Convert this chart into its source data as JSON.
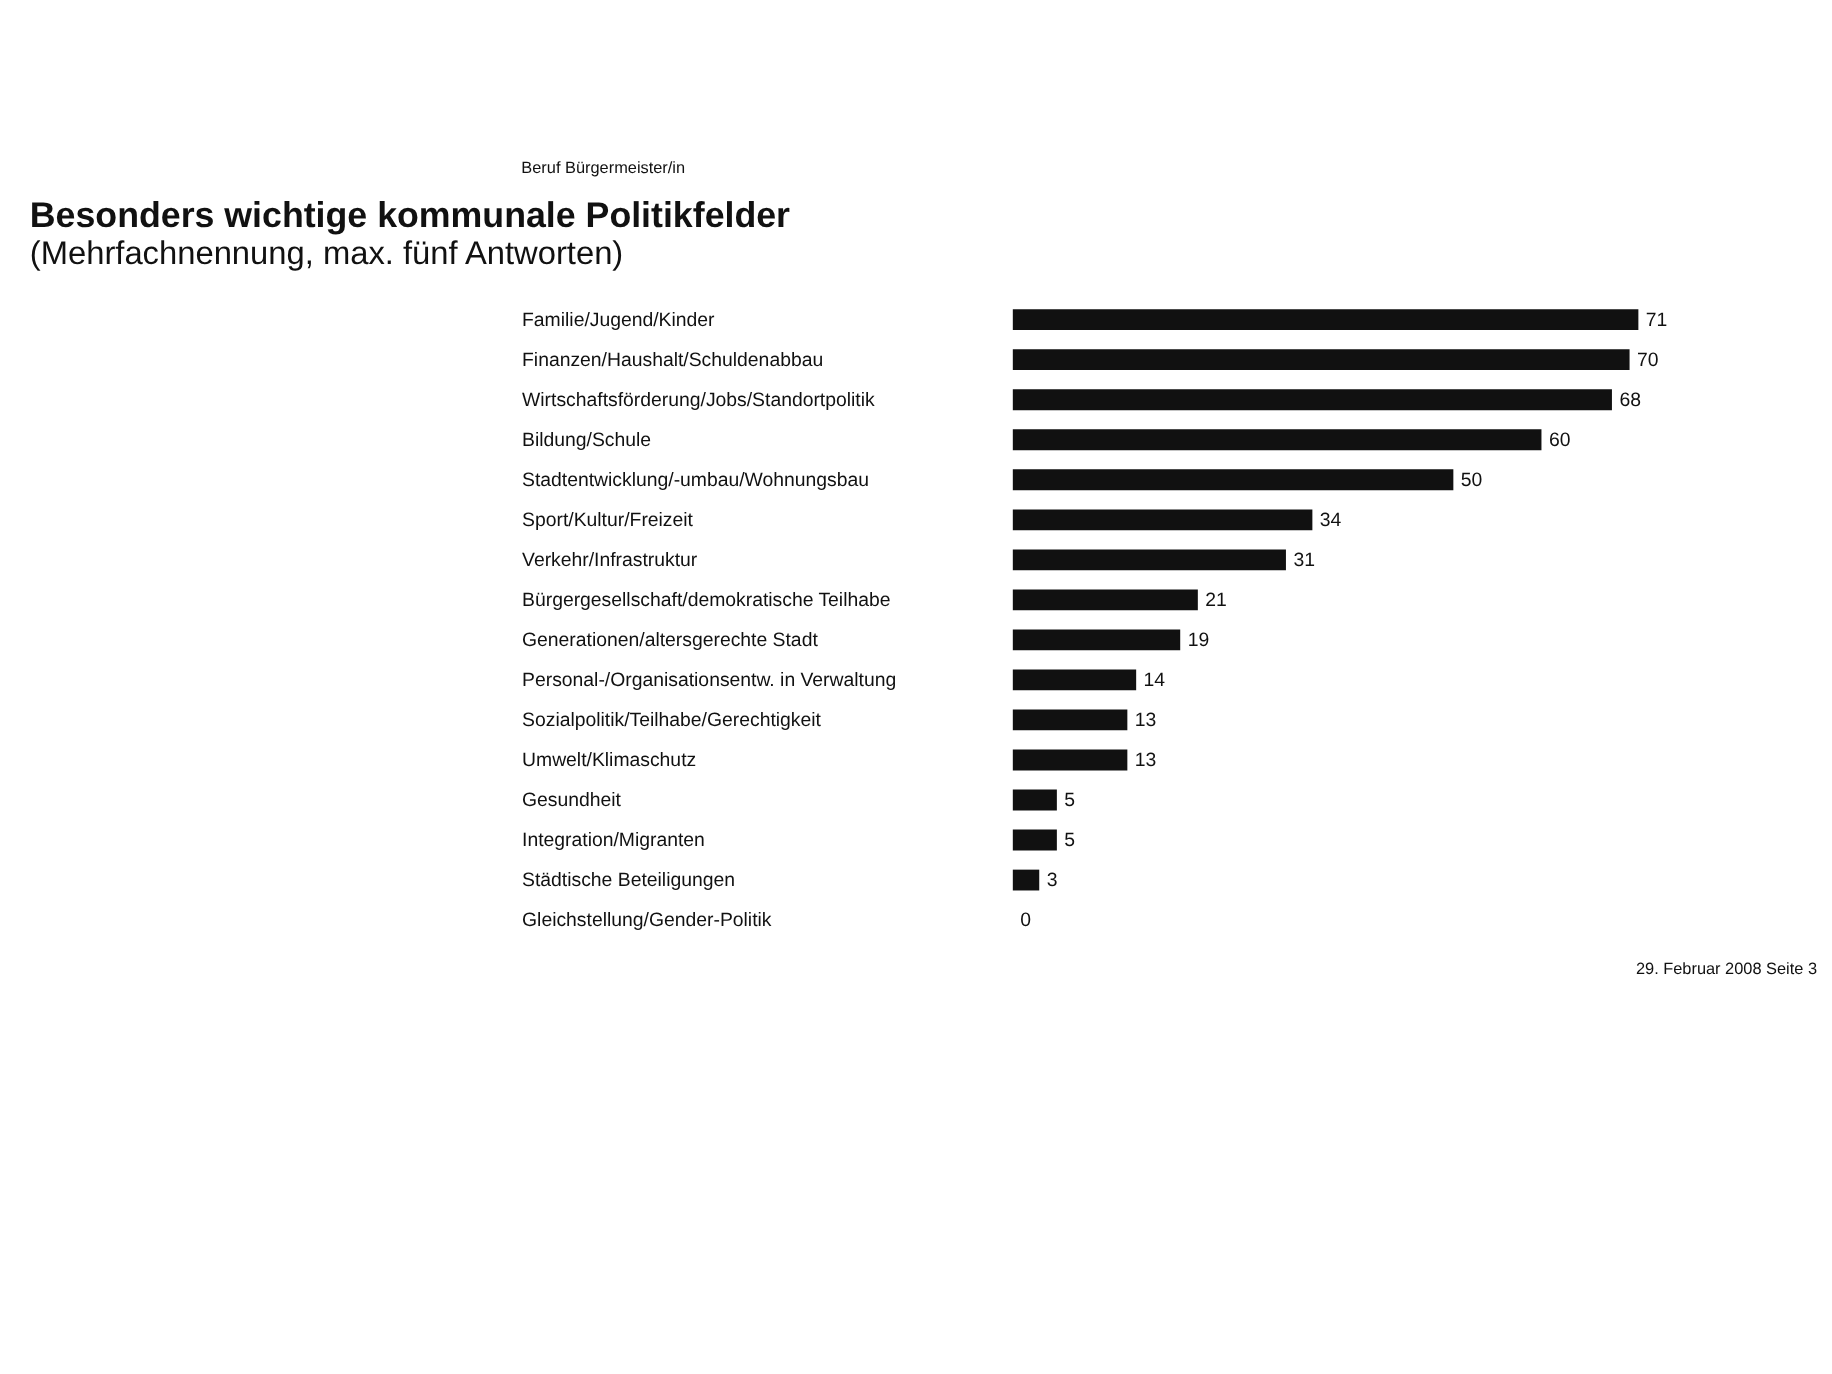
{
  "chart_data": {
    "type": "bar",
    "orientation": "horizontal",
    "title": "Besonders wichtige kommunale Politikfelder",
    "subtitle": "(Mehrfachnennung, max. fünf Antworten)",
    "categories": [
      "Familie/Jugend/Kinder",
      "Finanzen/Haushalt/Schuldenabbau",
      "Wirtschaftsförderung/Jobs/Standortpolitik",
      "Bildung/Schule",
      "Stadtentwicklung/-umbau/Wohnungsbau",
      "Sport/Kultur/Freizeit",
      "Verkehr/Infrastruktur",
      "Bürgergesellschaft/demokratische Teilhabe",
      "Generationen/altersgerechte Stadt",
      "Personal-/Organisationsentw. in Verwaltung",
      "Sozialpolitik/Teilhabe/Gerechtigkeit",
      "Umwelt/Klimaschutz",
      "Gesundheit",
      "Integration/Migranten",
      "Städtische Beteiligungen",
      "Gleichstellung/Gender-Politik"
    ],
    "values": [
      71,
      70,
      68,
      60,
      50,
      34,
      31,
      21,
      19,
      14,
      13,
      13,
      5,
      5,
      3,
      0
    ],
    "color": "#111111",
    "data_labels": true,
    "grid": false,
    "tick_labels": "y",
    "annotations": [
      "Beruf Bürgermeister/in",
      "29. Februar 2008",
      "Seite 3"
    ]
  }
}
